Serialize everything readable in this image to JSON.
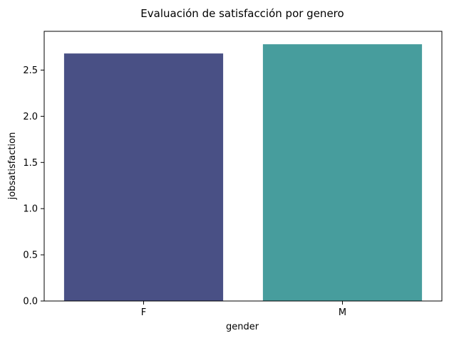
{
  "chart_data": {
    "type": "bar",
    "title": "Evaluación de satisfacción por genero",
    "xlabel": "gender",
    "ylabel": "jobsatisfaction",
    "categories": [
      "F",
      "M"
    ],
    "values": [
      2.68,
      2.78
    ],
    "colors": [
      "#495085",
      "#479d9d"
    ],
    "ylim": [
      0,
      2.92
    ],
    "yticks": [
      0.0,
      0.5,
      1.0,
      1.5,
      2.0,
      2.5
    ],
    "ytick_labels": [
      "0.0",
      "0.5",
      "1.0",
      "1.5",
      "2.0",
      "2.5"
    ],
    "grid": false,
    "legend": false
  }
}
